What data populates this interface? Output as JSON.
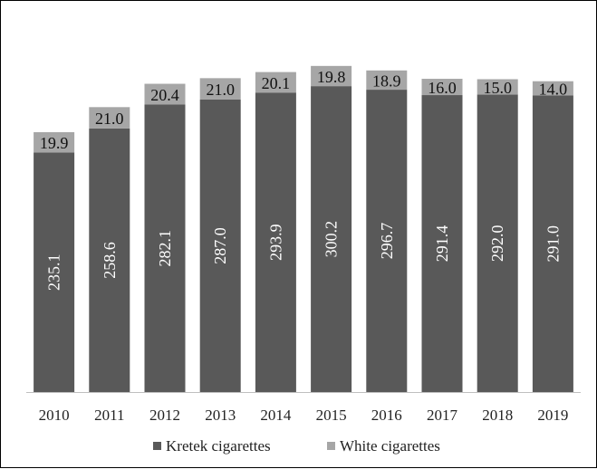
{
  "chart_data": {
    "type": "bar",
    "stacked": true,
    "categories": [
      "2010",
      "2011",
      "2012",
      "2013",
      "2014",
      "2015",
      "2016",
      "2017",
      "2018",
      "2019"
    ],
    "series": [
      {
        "name": "Kretek cigarettes",
        "color": "#595959",
        "values": [
          235.1,
          258.6,
          282.1,
          287.0,
          293.9,
          300.2,
          296.7,
          291.4,
          292.0,
          291.0
        ],
        "labels": [
          "235.1",
          "258.6",
          "282.1",
          "287.0",
          "293.9",
          "300.2",
          "296.7",
          "291.4",
          "292.0",
          "291.0"
        ]
      },
      {
        "name": "White cigarettes",
        "color": "#a6a6a6",
        "values": [
          19.9,
          21.0,
          20.4,
          21.0,
          20.1,
          19.8,
          18.9,
          16.0,
          15.0,
          14.0
        ],
        "labels": [
          "19.9",
          "21.0",
          "20.4",
          "21.0",
          "20.1",
          "19.8",
          "18.9",
          "16.0",
          "15.0",
          "14.0"
        ]
      }
    ],
    "title": "",
    "xlabel": "",
    "ylabel": "",
    "ylim": [
      0,
      330
    ],
    "grid": false,
    "legend_position": "bottom"
  }
}
